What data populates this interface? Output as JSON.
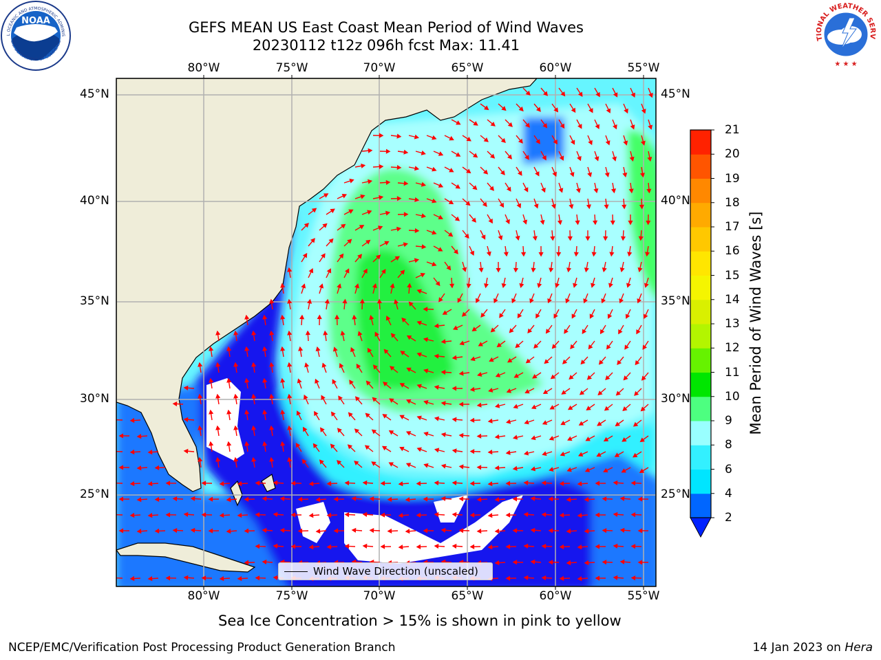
{
  "header": {
    "title_line1": "GEFS MEAN US East Coast Mean Period of Wind Waves",
    "title_line2": "20230112 t12z 096h fcst   Max: 11.41"
  },
  "logos": {
    "noaa_text": "NOAA",
    "noaa_ring_text": "NATIONAL OCEANIC AND ATMOSPHERIC ADMINISTRATION",
    "noaa_ring_bottom": "U.S. DEPARTMENT OF COMMERCE",
    "nws_ring_text": "NATIONAL WEATHER SERVICE"
  },
  "map": {
    "lon_labels": [
      "80°W",
      "75°W",
      "70°W",
      "65°W",
      "60°W",
      "55°W"
    ],
    "lat_labels": [
      "45°N",
      "40°N",
      "35°N",
      "30°N",
      "25°N"
    ],
    "legend_label": "Wind Wave Direction (unscaled)",
    "land_color": "#efedd9",
    "grid_color": "#b0b0b0",
    "arrow_color": "#ff0000"
  },
  "colorbar": {
    "label": "Mean Period of Wind Waves [s]",
    "ticks": [
      "2",
      "4",
      "6",
      "8",
      "9",
      "10",
      "11",
      "12",
      "13",
      "14",
      "15",
      "16",
      "17",
      "18",
      "19",
      "20",
      "21"
    ],
    "colors": [
      "#0066ff",
      "#00e5ff",
      "#33f0ff",
      "#99ffff",
      "#4dff80",
      "#00e600",
      "#66f200",
      "#b3f500",
      "#d9f000",
      "#f5f500",
      "#ffe600",
      "#ffc800",
      "#ffaa00",
      "#ff8800",
      "#ff5500",
      "#ff2200"
    ],
    "extend_color": "#0022ff"
  },
  "footer": {
    "sea_ice_note": "Sea Ice Concentration > 15% is shown in pink to yellow",
    "left": "NCEP/EMC/Verification Post Processing Product Generation Branch",
    "right_prefix": "14 Jan 2023 on ",
    "right_host": "Hera"
  }
}
